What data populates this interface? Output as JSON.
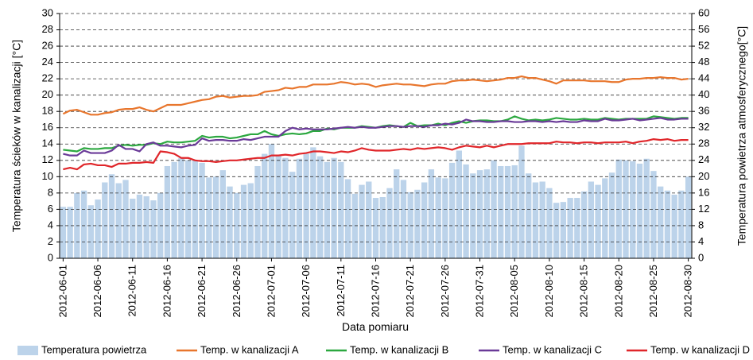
{
  "chart_data": {
    "type": "combo",
    "x_label": "Data pomiaru",
    "y_label": "Temperatura ścieków w kanalizacji [°C]",
    "y2_label": "Temperatura powietrza atmosferycznego[°C]",
    "categories": [
      "2012-06-01",
      null,
      null,
      null,
      null,
      "2012-06-06",
      null,
      null,
      null,
      null,
      "2012-06-11",
      null,
      null,
      null,
      null,
      "2012-06-16",
      null,
      null,
      null,
      null,
      "2012-06-21",
      null,
      null,
      null,
      null,
      "2012-06-26",
      null,
      null,
      null,
      null,
      "2012-07-01",
      null,
      null,
      null,
      null,
      "2012-07-06",
      null,
      null,
      null,
      null,
      "2012-07-11",
      null,
      null,
      null,
      null,
      "2012-07-16",
      null,
      null,
      null,
      null,
      "2012-07-21",
      null,
      null,
      null,
      null,
      "2012-07-26",
      null,
      null,
      null,
      null,
      "2012-07-31",
      null,
      null,
      null,
      null,
      "2012-08-05",
      null,
      null,
      null,
      null,
      "2012-08-10",
      null,
      null,
      null,
      null,
      "2012-08-15",
      null,
      null,
      null,
      null,
      "2012-08-20",
      null,
      null,
      null,
      null,
      "2012-08-25",
      null,
      null,
      null,
      null,
      "2012-08-30"
    ],
    "ylim": [
      0,
      30
    ],
    "yticks": [
      0,
      2,
      4,
      6,
      8,
      10,
      12,
      14,
      16,
      18,
      20,
      22,
      24,
      26,
      28,
      30
    ],
    "y2lim": [
      0,
      60
    ],
    "y2ticks": [
      0,
      4,
      8,
      12,
      16,
      20,
      24,
      28,
      32,
      36,
      40,
      44,
      48,
      52,
      56,
      60
    ],
    "grid": true,
    "legend": "bottom",
    "series": [
      {
        "name": "Temperatura powietrza",
        "type": "bar",
        "axis": "y2",
        "color": "#bcd3ea",
        "values": [
          12.6,
          12.6,
          16,
          16.6,
          13,
          14.4,
          18.6,
          20.6,
          18.4,
          19.2,
          14.6,
          15.6,
          15.2,
          14.2,
          16,
          22.6,
          23.6,
          24.6,
          24,
          24,
          23.4,
          19.8,
          20,
          21.6,
          17.6,
          16,
          18,
          18.4,
          22.6,
          25.6,
          28,
          25.2,
          24.6,
          21.2,
          24.4,
          25.6,
          27.2,
          25,
          23.6,
          24.6,
          23.6,
          19.4,
          15.8,
          18,
          18.8,
          14.8,
          15,
          17.2,
          21.8,
          19.2,
          16.2,
          16.8,
          18.6,
          21.8,
          19.8,
          19.6,
          23.4,
          26.4,
          23,
          20.8,
          21.6,
          21.8,
          24,
          22.6,
          22.6,
          22.8,
          27.6,
          20.8,
          18.6,
          18.8,
          17.2,
          13.6,
          13.8,
          14.8,
          14.8,
          16.4,
          18.8,
          18,
          19.6,
          21,
          24.2,
          24,
          23.8,
          23.2,
          24.4,
          21.4,
          17.6,
          16.6,
          15.6,
          16.6,
          20
        ]
      },
      {
        "name": "Temp. w kanalizacji A",
        "type": "line",
        "color": "#e8762d",
        "values": [
          17.7,
          18.1,
          18.2,
          17.9,
          17.6,
          17.6,
          17.8,
          17.9,
          18.2,
          18.3,
          18.3,
          18.5,
          18.2,
          18.0,
          18.4,
          18.8,
          18.8,
          18.8,
          19.0,
          19.2,
          19.4,
          19.5,
          19.8,
          19.9,
          19.7,
          19.8,
          19.9,
          19.9,
          20.0,
          20.4,
          20.5,
          20.6,
          20.9,
          20.8,
          21.0,
          21.0,
          21.3,
          21.3,
          21.3,
          21.4,
          21.6,
          21.5,
          21.3,
          21.4,
          21.3,
          21.0,
          21.2,
          21.3,
          21.4,
          21.3,
          21.3,
          21.2,
          21.1,
          21.3,
          21.4,
          21.4,
          21.7,
          21.8,
          21.8,
          21.9,
          21.8,
          21.7,
          21.8,
          21.9,
          22.1,
          22.1,
          22.3,
          22.1,
          22.1,
          21.9,
          21.7,
          21.4,
          21.8,
          21.8,
          21.8,
          21.8,
          21.7,
          21.7,
          21.7,
          21.6,
          21.6,
          21.9,
          22.0,
          22.0,
          22.1,
          22.1,
          22.2,
          22.1,
          22.1,
          21.9,
          22.0
        ]
      },
      {
        "name": "Temp. w kanalizacji B",
        "type": "line",
        "color": "#2ca840",
        "values": [
          13.3,
          13.2,
          13.1,
          13.5,
          13.4,
          13.4,
          13.5,
          13.5,
          13.8,
          13.9,
          13.8,
          13.9,
          13.9,
          14.1,
          14.0,
          14.3,
          14.2,
          14.2,
          14.3,
          14.4,
          15.0,
          14.8,
          14.9,
          14.9,
          14.7,
          14.8,
          15.0,
          15.2,
          15.2,
          15.6,
          15.2,
          15.0,
          15.2,
          15.3,
          15.2,
          15.3,
          15.6,
          15.6,
          15.9,
          15.8,
          16.0,
          16.0,
          16.0,
          16.2,
          16.1,
          16.0,
          16.2,
          16.3,
          16.2,
          16.1,
          16.6,
          16.2,
          16.3,
          16.3,
          16.5,
          16.3,
          16.6,
          16.8,
          16.6,
          16.8,
          16.9,
          16.9,
          16.8,
          16.8,
          17.0,
          17.4,
          17.1,
          16.9,
          17.0,
          16.9,
          17.0,
          17.2,
          17.1,
          17.0,
          17.0,
          17.1,
          17.0,
          17.0,
          17.2,
          17.1,
          17.0,
          17.1,
          17.1,
          17.1,
          17.1,
          17.4,
          17.3,
          17.2,
          17.1,
          17.2,
          17.2
        ]
      },
      {
        "name": "Temp. w kanalizacji C",
        "type": "line",
        "color": "#6a3a98",
        "values": [
          12.8,
          12.6,
          12.6,
          13.2,
          12.9,
          12.9,
          12.9,
          13.2,
          13.9,
          13.4,
          13.4,
          13.1,
          14.0,
          14.2,
          13.8,
          13.8,
          13.7,
          13.6,
          13.8,
          13.9,
          14.7,
          14.4,
          14.5,
          14.5,
          14.4,
          14.4,
          14.6,
          14.5,
          14.7,
          14.9,
          14.9,
          14.9,
          15.6,
          16.0,
          15.8,
          15.9,
          15.8,
          15.8,
          15.8,
          15.9,
          16.0,
          16.1,
          16.0,
          16.1,
          16.0,
          16.0,
          16.1,
          16.2,
          16.2,
          16.1,
          16.2,
          16.2,
          16.1,
          16.3,
          16.3,
          16.5,
          16.4,
          16.6,
          17.0,
          16.8,
          16.8,
          16.7,
          16.7,
          16.8,
          16.8,
          16.7,
          16.7,
          16.8,
          16.8,
          16.7,
          16.8,
          16.7,
          16.8,
          16.7,
          16.7,
          16.9,
          16.8,
          16.8,
          17.1,
          16.9,
          16.9,
          17.0,
          17.1,
          16.9,
          17.0,
          17.1,
          17.2,
          17.0,
          17.0,
          17.1,
          17.1
        ]
      },
      {
        "name": "Temp. w kanalizacji D",
        "type": "line",
        "color": "#e0262a",
        "values": [
          10.9,
          11.1,
          10.9,
          11.5,
          11.6,
          11.4,
          11.4,
          11.2,
          11.6,
          11.6,
          11.7,
          11.7,
          11.8,
          11.7,
          13.1,
          13.0,
          12.8,
          12.3,
          12.3,
          12.0,
          11.9,
          11.9,
          11.8,
          11.9,
          12.0,
          12.0,
          12.1,
          12.2,
          12.3,
          12.3,
          12.6,
          12.6,
          12.7,
          12.6,
          12.8,
          12.9,
          13.1,
          13.1,
          13.0,
          12.9,
          13.1,
          13.0,
          13.2,
          13.5,
          13.3,
          13.2,
          13.2,
          13.2,
          13.3,
          13.4,
          13.3,
          13.5,
          13.4,
          13.5,
          13.6,
          13.5,
          13.3,
          13.6,
          13.8,
          13.7,
          13.6,
          13.8,
          13.6,
          13.8,
          14.0,
          14.0,
          14.0,
          14.1,
          14.1,
          14.1,
          14.1,
          14.3,
          14.2,
          14.2,
          14.1,
          14.2,
          14.2,
          14.1,
          14.2,
          14.2,
          14.2,
          14.3,
          14.1,
          14.3,
          14.4,
          14.6,
          14.5,
          14.6,
          14.4,
          14.5,
          14.5
        ]
      }
    ]
  }
}
